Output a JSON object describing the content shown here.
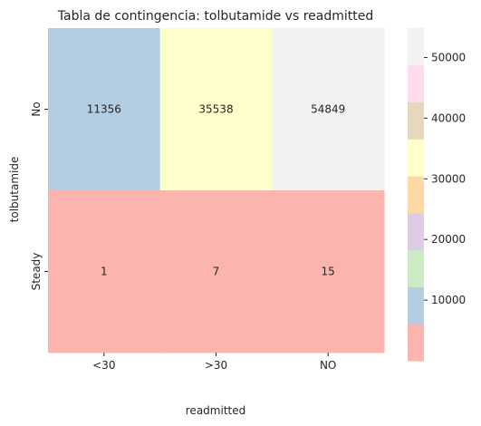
{
  "chart_data": {
    "type": "heatmap",
    "title": "Tabla de contingencia: tolbutamide vs readmitted",
    "xlabel": "readmitted",
    "ylabel": "tolbutamide",
    "x_categories": [
      "<30",
      ">30",
      "NO"
    ],
    "y_categories": [
      "No",
      "Steady"
    ],
    "values": [
      [
        11356,
        35538,
        54849
      ],
      [
        1,
        7,
        15
      ]
    ],
    "colormap": "Pastel1",
    "colorbar": {
      "ticks": [
        10000,
        20000,
        30000,
        40000,
        50000
      ],
      "tick_labels": [
        "10000",
        "20000",
        "30000",
        "40000",
        "50000"
      ],
      "vmin": 1,
      "vmax": 54849,
      "colors": [
        "#fbb4ae",
        "#b3cde3",
        "#ccebc5",
        "#decbe4",
        "#fed9a6",
        "#ffffcc",
        "#e5d8bd",
        "#fddaec",
        "#f2f2f2"
      ]
    },
    "annotations": true
  }
}
